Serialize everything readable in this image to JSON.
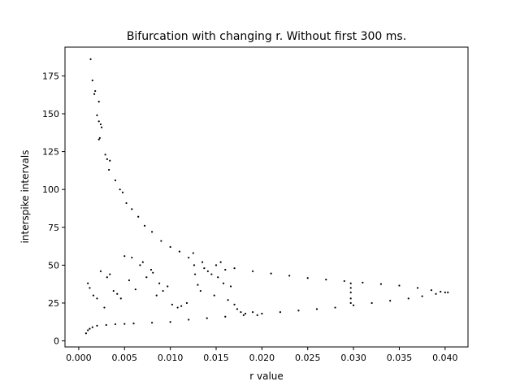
{
  "chart_data": {
    "type": "scatter",
    "title": "Bifurcation with changing r. Without first 300 ms.",
    "xlabel": "r value",
    "ylabel": "interspike intervals",
    "xlim": [
      -0.0015,
      0.0425
    ],
    "ylim": [
      -4,
      194
    ],
    "xticks": [
      0.0,
      0.005,
      0.01,
      0.015,
      0.02,
      0.025,
      0.03,
      0.035,
      0.04
    ],
    "xtick_labels": [
      "0.000",
      "0.005",
      "0.010",
      "0.015",
      "0.020",
      "0.025",
      "0.030",
      "0.035",
      "0.040"
    ],
    "yticks": [
      0,
      25,
      50,
      75,
      100,
      125,
      150,
      175
    ],
    "ytick_labels": [
      "0",
      "25",
      "50",
      "75",
      "100",
      "125",
      "150",
      "175"
    ],
    "grid": false,
    "marker_color": "#000000",
    "series": [
      {
        "points": [
          [
            0.0013,
            186
          ],
          [
            0.0015,
            172
          ],
          [
            0.0018,
            165
          ],
          [
            0.0017,
            163
          ],
          [
            0.0022,
            158
          ],
          [
            0.002,
            149
          ],
          [
            0.0022,
            145
          ],
          [
            0.0024,
            143
          ],
          [
            0.0025,
            141
          ],
          [
            0.0023,
            134
          ],
          [
            0.0022,
            133
          ],
          [
            0.0029,
            123
          ],
          [
            0.0031,
            120
          ],
          [
            0.0034,
            119
          ],
          [
            0.0033,
            113
          ],
          [
            0.004,
            106
          ],
          [
            0.0045,
            100
          ],
          [
            0.0048,
            98
          ],
          [
            0.0052,
            91
          ],
          [
            0.0058,
            87
          ],
          [
            0.0065,
            82
          ],
          [
            0.0072,
            76
          ],
          [
            0.008,
            72
          ],
          [
            0.009,
            66
          ],
          [
            0.01,
            62
          ],
          [
            0.011,
            59
          ],
          [
            0.012,
            55
          ],
          [
            0.0135,
            52
          ],
          [
            0.015,
            50
          ],
          [
            0.017,
            48
          ],
          [
            0.019,
            46
          ],
          [
            0.021,
            44.5
          ],
          [
            0.023,
            43
          ],
          [
            0.025,
            41.5
          ],
          [
            0.027,
            40.5
          ],
          [
            0.029,
            39.5
          ],
          [
            0.031,
            38.5
          ],
          [
            0.033,
            37.5
          ],
          [
            0.035,
            36.5
          ],
          [
            0.037,
            35
          ],
          [
            0.0385,
            33.5
          ],
          [
            0.0395,
            32.5
          ],
          [
            0.0403,
            32
          ],
          [
            0.0008,
            5
          ],
          [
            0.001,
            7
          ],
          [
            0.0012,
            8
          ],
          [
            0.0015,
            9
          ],
          [
            0.002,
            10
          ],
          [
            0.003,
            10.5
          ],
          [
            0.004,
            11
          ],
          [
            0.005,
            11.2
          ],
          [
            0.006,
            11.5
          ],
          [
            0.008,
            12
          ],
          [
            0.01,
            12.5
          ],
          [
            0.012,
            14
          ],
          [
            0.014,
            15
          ],
          [
            0.016,
            16
          ],
          [
            0.018,
            17
          ],
          [
            0.02,
            18
          ],
          [
            0.022,
            19
          ],
          [
            0.024,
            20
          ],
          [
            0.026,
            21
          ],
          [
            0.028,
            22
          ],
          [
            0.03,
            23.5
          ],
          [
            0.032,
            25
          ],
          [
            0.034,
            26.5
          ],
          [
            0.036,
            28
          ],
          [
            0.0375,
            29.5
          ],
          [
            0.039,
            31
          ],
          [
            0.04,
            32
          ],
          [
            0.001,
            38
          ],
          [
            0.0012,
            35
          ],
          [
            0.0016,
            30
          ],
          [
            0.002,
            28
          ],
          [
            0.0024,
            46
          ],
          [
            0.0028,
            22
          ],
          [
            0.0031,
            42
          ],
          [
            0.0034,
            44
          ],
          [
            0.0038,
            33
          ],
          [
            0.0042,
            31
          ],
          [
            0.0046,
            28
          ],
          [
            0.005,
            56
          ],
          [
            0.0055,
            40
          ],
          [
            0.0058,
            55
          ],
          [
            0.0062,
            34
          ],
          [
            0.0067,
            50
          ],
          [
            0.007,
            52
          ],
          [
            0.0074,
            42
          ],
          [
            0.0079,
            47
          ],
          [
            0.0081,
            45
          ],
          [
            0.0085,
            30
          ],
          [
            0.0088,
            38
          ],
          [
            0.0092,
            33
          ],
          [
            0.0097,
            36
          ],
          [
            0.0102,
            24
          ],
          [
            0.0108,
            22
          ],
          [
            0.0112,
            23
          ],
          [
            0.0118,
            25
          ],
          [
            0.0125,
            58
          ],
          [
            0.0126,
            50
          ],
          [
            0.0127,
            44
          ],
          [
            0.013,
            37
          ],
          [
            0.0133,
            33
          ],
          [
            0.0137,
            48
          ],
          [
            0.0141,
            46
          ],
          [
            0.0145,
            44
          ],
          [
            0.0148,
            30
          ],
          [
            0.0152,
            42
          ],
          [
            0.0155,
            52
          ],
          [
            0.0158,
            38
          ],
          [
            0.016,
            47
          ],
          [
            0.0163,
            27
          ],
          [
            0.0166,
            36
          ],
          [
            0.017,
            24
          ],
          [
            0.0173,
            21
          ],
          [
            0.0177,
            19
          ],
          [
            0.0182,
            18
          ],
          [
            0.019,
            19
          ],
          [
            0.0195,
            17
          ],
          [
            0.0297,
            38
          ],
          [
            0.0297,
            35
          ],
          [
            0.0297,
            32
          ],
          [
            0.0297,
            28
          ],
          [
            0.0297,
            25
          ]
        ]
      }
    ]
  }
}
